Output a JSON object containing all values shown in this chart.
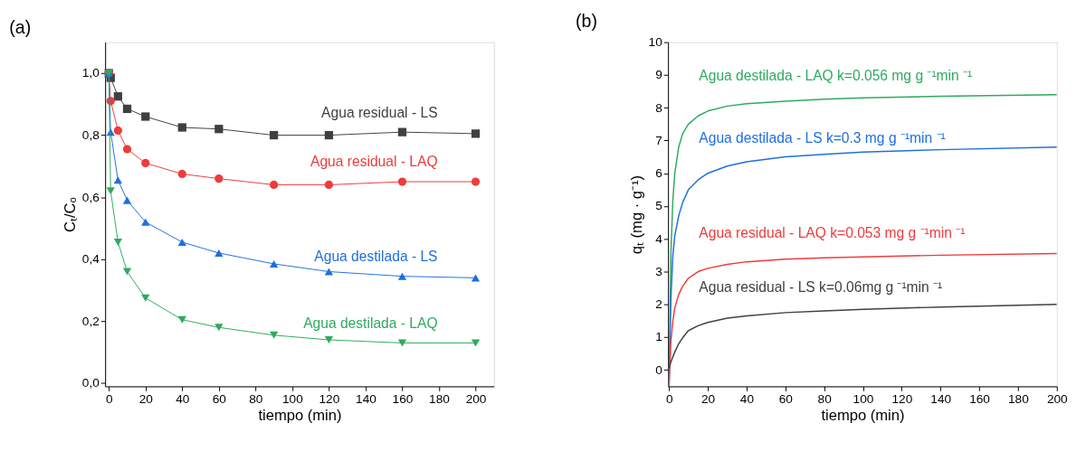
{
  "chart_data": [
    {
      "type": "line",
      "title": "(a)",
      "xlabel": "tiempo  (min)",
      "ylabel": "Cₜ/Cₒ",
      "x": [
        0,
        1,
        5,
        10,
        20,
        40,
        60,
        90,
        120,
        160,
        200
      ],
      "series": [
        {
          "name": "Agua residual - LS",
          "color": "#404040",
          "marker": "square",
          "values": [
            1.0,
            0.985,
            0.925,
            0.885,
            0.86,
            0.825,
            0.82,
            0.8,
            0.8,
            0.81,
            0.805
          ]
        },
        {
          "name": "Agua residual - LAQ",
          "color": "#ef3b3b",
          "marker": "circle",
          "values": [
            1.0,
            0.91,
            0.815,
            0.755,
            0.71,
            0.675,
            0.66,
            0.64,
            0.64,
            0.65,
            0.65
          ]
        },
        {
          "name": "Agua destilada - LS",
          "color": "#1f6fe0",
          "marker": "triangle",
          "values": [
            1.0,
            0.81,
            0.655,
            0.59,
            0.52,
            0.455,
            0.42,
            0.385,
            0.36,
            0.345,
            0.34
          ]
        },
        {
          "name": "Agua destilada - LAQ",
          "color": "#2eaa5e",
          "marker": "triangle-down",
          "values": [
            1.0,
            0.62,
            0.455,
            0.36,
            0.275,
            0.205,
            0.18,
            0.155,
            0.14,
            0.13,
            0.13
          ]
        }
      ],
      "xlim": [
        -2,
        210
      ],
      "xticks": [
        0,
        20,
        40,
        60,
        80,
        100,
        120,
        140,
        160,
        180,
        200
      ],
      "ylim": [
        -0.01,
        1.1
      ],
      "yticks": [
        {
          "value": 0,
          "label": "0,0"
        },
        {
          "value": 0.2,
          "label": "0,2"
        },
        {
          "value": 0.4,
          "label": "0,4"
        },
        {
          "value": 0.6,
          "label": "0,6"
        },
        {
          "value": 0.8,
          "label": "0,8"
        },
        {
          "value": 1.0,
          "label": "1,0"
        }
      ],
      "grid": false
    },
    {
      "type": "line",
      "title": "(b)",
      "xlabel": "tiempo (min)",
      "ylabel": "qₜ (mg · g⁻¹)",
      "x": [
        0,
        1,
        2,
        3,
        5,
        7,
        10,
        15,
        20,
        30,
        40,
        60,
        80,
        100,
        140,
        200
      ],
      "series": [
        {
          "name": "Agua destilada - LAQ  k=0.056 mg g ⁻¹min ⁻¹",
          "color": "#2eaa5e",
          "values": [
            -0.5,
            3.6,
            5.2,
            6.0,
            6.8,
            7.2,
            7.5,
            7.75,
            7.9,
            8.05,
            8.12,
            8.2,
            8.26,
            8.3,
            8.35,
            8.4
          ]
        },
        {
          "name": "Agua destilada - LS k=0.3 mg g ⁻¹min ⁻¹",
          "color": "#1f6fe0",
          "values": [
            -0.5,
            2.2,
            3.5,
            4.1,
            4.7,
            5.1,
            5.5,
            5.8,
            6.0,
            6.22,
            6.35,
            6.5,
            6.58,
            6.65,
            6.72,
            6.8
          ]
        },
        {
          "name": "Agua residual - LAQ k=0.053 mg g ⁻¹min ⁻¹",
          "color": "#ef3b3b",
          "values": [
            -0.5,
            0.9,
            1.5,
            1.9,
            2.3,
            2.55,
            2.8,
            3.0,
            3.1,
            3.22,
            3.3,
            3.38,
            3.42,
            3.45,
            3.5,
            3.55
          ]
        },
        {
          "name": "Agua residual - LS k=0.06mg g ⁻¹min ⁻¹",
          "color": "#404040",
          "values": [
            0.05,
            0.25,
            0.4,
            0.55,
            0.8,
            0.98,
            1.2,
            1.35,
            1.45,
            1.58,
            1.65,
            1.75,
            1.8,
            1.85,
            1.92,
            2.0
          ]
        }
      ],
      "xlim": [
        -0.5,
        200
      ],
      "xticks": [
        0,
        20,
        40,
        60,
        80,
        100,
        120,
        140,
        160,
        180,
        200
      ],
      "ylim": [
        -0.5,
        10
      ],
      "yticks": [
        0,
        1,
        2,
        3,
        4,
        5,
        6,
        7,
        8,
        9,
        10
      ],
      "grid": false
    }
  ]
}
